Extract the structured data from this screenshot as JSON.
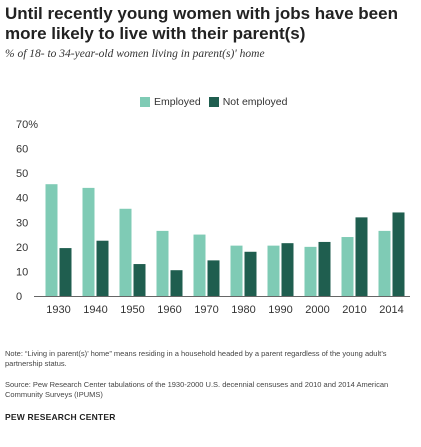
{
  "title": "Until recently young women with jobs have been more likely to live with their parent(s)",
  "subtitle": "% of 18- to 34-year-old women living in parent(s)' home",
  "note": "Note: “Living in parent(s)’ home” means residing in a household headed by a parent regardless of the young adult’s partnership status.",
  "source": "Source: Pew Research Center tabulations of the 1930-2000 U.S. decennial censuses and 2010 and 2014 American Community Surveys (IPUMS)",
  "brand": "PEW RESEARCH CENTER",
  "colors": {
    "employed": "#7fcbb5",
    "not_employed": "#1f5e4f",
    "axis": "#666666"
  },
  "chart_data": {
    "type": "bar",
    "title": "Until recently young women with jobs have been more likely to live with their parent(s)",
    "subtitle": "% of 18- to 34-year-old women living in parent(s)' home",
    "categories": [
      "1930",
      "1940",
      "1950",
      "1960",
      "1970",
      "1980",
      "1990",
      "2000",
      "2010",
      "2014"
    ],
    "series": [
      {
        "name": "Employed",
        "values": [
          45.5,
          44,
          35.5,
          26.5,
          25,
          20.5,
          20.5,
          20,
          24,
          26.5
        ]
      },
      {
        "name": "Not employed",
        "values": [
          19.5,
          22.5,
          13,
          10.5,
          14.5,
          18,
          21.5,
          22,
          32,
          34
        ]
      }
    ],
    "yticks": [
      "0",
      "10",
      "20",
      "30",
      "40",
      "50",
      "60",
      "70%"
    ],
    "ylim": [
      0,
      70
    ],
    "legend": "top",
    "grid": false
  }
}
